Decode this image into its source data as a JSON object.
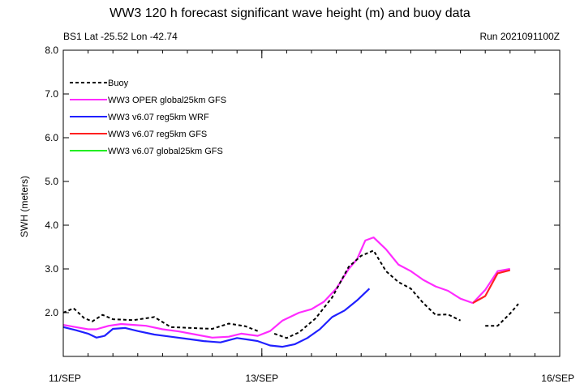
{
  "chart_data": {
    "type": "line",
    "title": "WW3 120 h forecast significant wave height (m) and buoy data",
    "subtitle_left": "BS1 Lat -25.52 Lon -42.74",
    "subtitle_right": "Run 2021091100Z",
    "xlabel": "",
    "ylabel": "SWH (meters)",
    "xlim": [
      0,
      120
    ],
    "ylim": [
      1.0,
      8.0
    ],
    "x_ticks": [
      {
        "x": 0,
        "label": "11/SEP"
      },
      {
        "x": 48,
        "label": "13/SEP"
      },
      {
        "x": 120,
        "label": "16/SEP"
      }
    ],
    "y_ticks": [
      {
        "y": 2.0,
        "label": "2.0"
      },
      {
        "y": 3.0,
        "label": "3.0"
      },
      {
        "y": 4.0,
        "label": "4.0"
      },
      {
        "y": 5.0,
        "label": "5.0"
      },
      {
        "y": 6.0,
        "label": "6.0"
      },
      {
        "y": 7.0,
        "label": "7.0"
      },
      {
        "y": 8.0,
        "label": "8.0"
      }
    ],
    "grid": false,
    "legend_position": "top-left",
    "series": [
      {
        "name": "Buoy",
        "color": "#000000",
        "dash": true,
        "segments": [
          [
            [
              0,
              2.0
            ],
            [
              2.5,
              2.1
            ],
            [
              5,
              1.88
            ],
            [
              7,
              1.8
            ],
            [
              9.5,
              1.95
            ],
            [
              12,
              1.85
            ],
            [
              17,
              1.83
            ],
            [
              22,
              1.9
            ],
            [
              26,
              1.67
            ],
            [
              31,
              1.65
            ],
            [
              36,
              1.63
            ],
            [
              40,
              1.75
            ],
            [
              44,
              1.69
            ],
            [
              47,
              1.58
            ]
          ],
          [
            [
              51,
              1.52
            ],
            [
              54,
              1.42
            ],
            [
              57,
              1.55
            ],
            [
              61,
              1.87
            ],
            [
              65,
              2.35
            ],
            [
              69,
              3.05
            ],
            [
              72,
              3.3
            ],
            [
              75,
              3.42
            ],
            [
              78,
              2.95
            ],
            [
              81,
              2.7
            ],
            [
              84,
              2.55
            ],
            [
              87,
              2.22
            ],
            [
              90,
              1.95
            ],
            [
              93,
              1.96
            ],
            [
              96,
              1.82
            ]
          ],
          [
            [
              102,
              1.7
            ],
            [
              105,
              1.7
            ],
            [
              108,
              1.98
            ],
            [
              110,
              2.2
            ]
          ]
        ]
      },
      {
        "name": "WW3 OPER global25km GFS",
        "color": "#ff2bff",
        "dash": false,
        "segments": [
          [
            [
              0,
              1.72
            ],
            [
              3,
              1.67
            ],
            [
              6,
              1.62
            ],
            [
              8,
              1.62
            ],
            [
              11,
              1.7
            ],
            [
              14,
              1.74
            ],
            [
              17,
              1.72
            ],
            [
              20,
              1.7
            ],
            [
              24,
              1.62
            ],
            [
              28,
              1.57
            ],
            [
              32,
              1.5
            ],
            [
              36,
              1.43
            ],
            [
              40,
              1.45
            ],
            [
              43,
              1.52
            ],
            [
              47,
              1.47
            ],
            [
              50,
              1.58
            ],
            [
              53,
              1.82
            ],
            [
              57,
              2.0
            ],
            [
              60,
              2.08
            ],
            [
              63,
              2.25
            ],
            [
              66,
              2.55
            ],
            [
              69,
              3.0
            ],
            [
              71,
              3.22
            ],
            [
              73,
              3.65
            ],
            [
              75,
              3.72
            ],
            [
              78,
              3.45
            ],
            [
              81,
              3.1
            ],
            [
              84,
              2.95
            ],
            [
              87,
              2.75
            ],
            [
              90,
              2.6
            ],
            [
              93,
              2.5
            ],
            [
              96,
              2.32
            ],
            [
              99,
              2.22
            ],
            [
              102,
              2.52
            ],
            [
              105,
              2.95
            ],
            [
              108,
              3.0
            ]
          ]
        ]
      },
      {
        "name": "WW3 v6.07 reg5km WRF",
        "color": "#2020ff",
        "dash": false,
        "segments": [
          [
            [
              0,
              1.67
            ],
            [
              3,
              1.6
            ],
            [
              6,
              1.52
            ],
            [
              8,
              1.43
            ],
            [
              10,
              1.47
            ],
            [
              12,
              1.63
            ],
            [
              15,
              1.65
            ],
            [
              18,
              1.58
            ],
            [
              22,
              1.5
            ],
            [
              26,
              1.45
            ],
            [
              30,
              1.4
            ],
            [
              34,
              1.35
            ],
            [
              38,
              1.32
            ],
            [
              42,
              1.42
            ],
            [
              45,
              1.38
            ],
            [
              47,
              1.35
            ],
            [
              50,
              1.25
            ],
            [
              53,
              1.22
            ],
            [
              56,
              1.28
            ],
            [
              59,
              1.42
            ],
            [
              62,
              1.62
            ],
            [
              65,
              1.9
            ],
            [
              68,
              2.05
            ],
            [
              71,
              2.28
            ],
            [
              74,
              2.55
            ]
          ]
        ]
      },
      {
        "name": "WW3 v6.07 reg5km GFS",
        "color": "#ff2020",
        "dash": false,
        "segments": [
          [
            [
              99,
              2.22
            ],
            [
              102,
              2.38
            ],
            [
              105,
              2.9
            ],
            [
              108,
              2.97
            ]
          ]
        ]
      },
      {
        "name": "WW3 v6.07 global25km GFS",
        "color": "#22ee22",
        "dash": false,
        "segments": []
      }
    ]
  }
}
